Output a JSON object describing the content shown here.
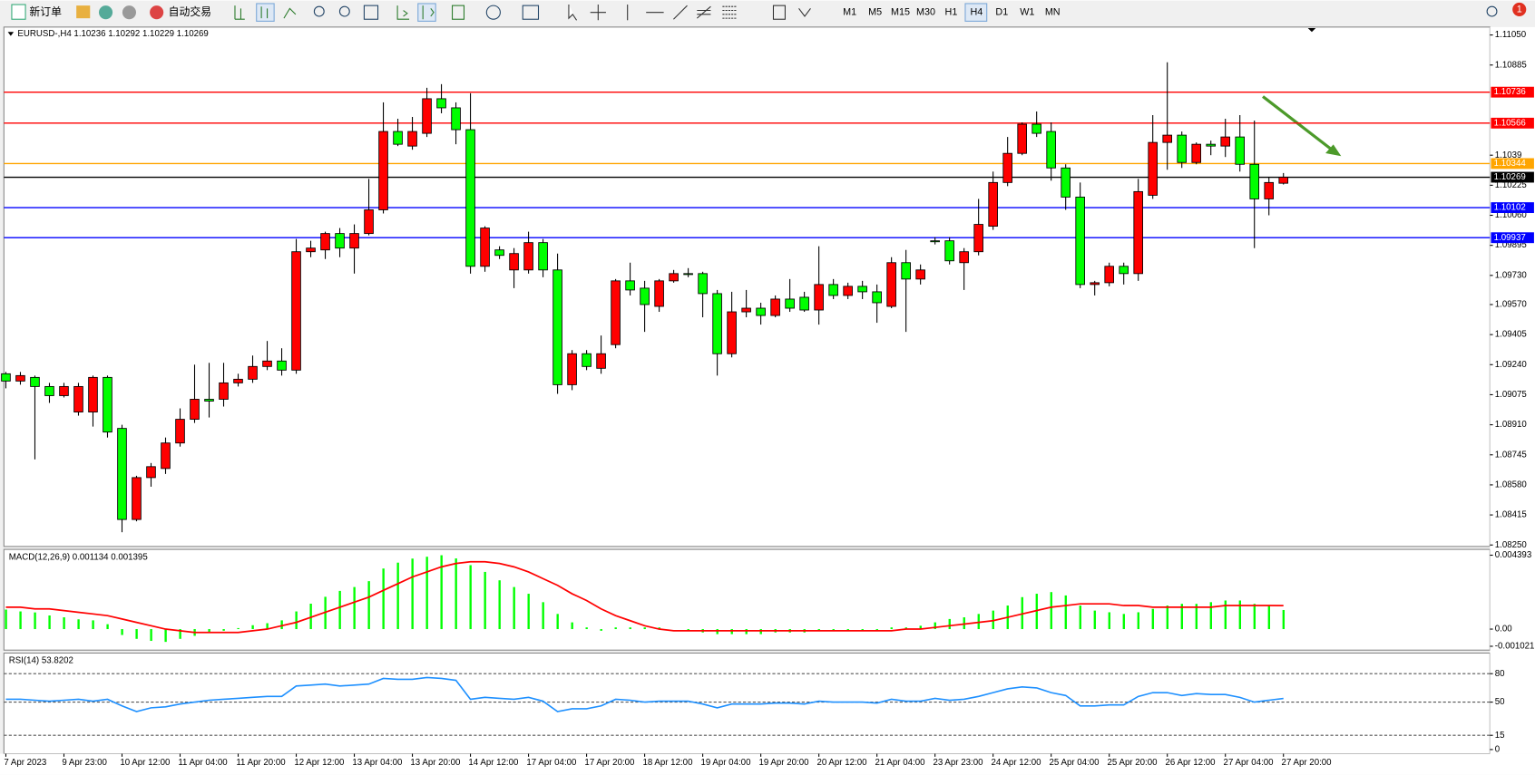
{
  "toolbar": {
    "new_order": "新订单",
    "auto_trading": "自动交易",
    "timeframes": [
      "M1",
      "M5",
      "M15",
      "M30",
      "H1",
      "H4",
      "D1",
      "W1",
      "MN"
    ],
    "notification": "1"
  },
  "chart_data": [
    {
      "type": "candlestick",
      "title": "EURUSD-,H4  1.10236 1.10292 1.10229 1.10269",
      "categories": [
        "7 Apr 2023",
        null,
        null,
        null,
        "9 Apr 23:00",
        null,
        null,
        null,
        "10 Apr 12:00",
        null,
        null,
        null,
        "11 Apr 04:00",
        null,
        null,
        null,
        "11 Apr 20:00",
        null,
        null,
        null,
        "12 Apr 12:00",
        null,
        null,
        null,
        "13 Apr 04:00",
        null,
        null,
        null,
        "13 Apr 20:00",
        null,
        null,
        null,
        "14 Apr 12:00",
        null,
        null,
        null,
        "17 Apr 04:00",
        null,
        null,
        null,
        "17 Apr 20:00",
        null,
        null,
        null,
        "18 Apr 12:00",
        null,
        null,
        null,
        "19 Apr 04:00",
        null,
        null,
        null,
        "19 Apr 20:00",
        null,
        null,
        null,
        "20 Apr 12:00",
        null,
        null,
        null,
        "21 Apr 04:00",
        null,
        null,
        null,
        "23 Apr 23:00",
        null,
        null,
        null,
        "24 Apr 12:00",
        null,
        null,
        null,
        "25 Apr 04:00",
        null,
        null,
        null,
        "25 Apr 20:00",
        null,
        null,
        null,
        "26 Apr 12:00",
        null,
        null,
        null,
        "27 Apr 04:00",
        null,
        null,
        null,
        "27 Apr 20:00"
      ],
      "open": [
        1.0919,
        1.0915,
        1.0917,
        1.0912,
        1.0907,
        1.0898,
        1.0898,
        1.0917,
        1.0889,
        1.0839,
        1.0862,
        1.0867,
        1.0881,
        1.0894,
        1.0905,
        1.0905,
        1.0914,
        1.0916,
        1.0923,
        1.0926,
        1.0921,
        1.0986,
        1.0987,
        1.0996,
        1.0988,
        1.0996,
        1.1009,
        1.1052,
        1.1044,
        1.1051,
        1.107,
        1.1065,
        1.1053,
        1.0978,
        1.0987,
        1.0976,
        1.0976,
        1.0991,
        1.0976,
        1.0913,
        1.093,
        1.0922,
        1.0935,
        1.097,
        1.0966,
        1.0956,
        1.097,
        1.0974,
        1.0974,
        1.0963,
        1.093,
        1.0953,
        1.0955,
        1.0951,
        1.096,
        1.0961,
        1.0954,
        1.0968,
        1.0962,
        1.0967,
        1.0964,
        1.0956,
        1.098,
        1.0971,
        1.0992,
        1.0992,
        1.098,
        1.0986,
        1.1,
        1.1024,
        1.104,
        1.1056,
        1.1052,
        1.1032,
        1.1016,
        1.0968,
        1.0969,
        1.0978,
        1.0974,
        1.1017,
        1.1046,
        1.105,
        1.1035,
        1.1045,
        1.1044,
        1.1049,
        1.1034,
        1.1015,
        1.10236
      ],
      "high": [
        1.092,
        1.092,
        1.0918,
        1.0914,
        1.0914,
        1.0914,
        1.0918,
        1.0918,
        1.0891,
        1.0863,
        1.087,
        1.0884,
        1.09,
        1.0924,
        1.0925,
        1.0925,
        1.0919,
        1.0929,
        1.0937,
        1.0933,
        1.0993,
        1.0992,
        1.0997,
        1.0999,
        1.1001,
        1.1026,
        1.1068,
        1.1059,
        1.106,
        1.1076,
        1.1078,
        1.1068,
        1.1073,
        1.1,
        1.0989,
        1.0988,
        1.0997,
        1.0993,
        1.0985,
        1.0932,
        1.0932,
        1.094,
        1.0971,
        1.098,
        1.097,
        1.0971,
        1.0976,
        1.0977,
        1.0975,
        1.0965,
        1.0964,
        1.0965,
        1.0958,
        1.0962,
        1.0971,
        1.0964,
        1.0989,
        1.0971,
        1.0969,
        1.097,
        1.0968,
        1.0983,
        1.0987,
        1.0979,
        1.0994,
        1.0994,
        1.0988,
        1.1015,
        1.103,
        1.1049,
        1.1057,
        1.1063,
        1.1057,
        1.1034,
        1.1024,
        1.097,
        1.098,
        1.098,
        1.1026,
        1.1061,
        1.109,
        1.1052,
        1.1046,
        1.1047,
        1.1059,
        1.1061,
        1.1058,
        1.1027,
        1.10292
      ],
      "low": [
        1.0911,
        1.0913,
        1.0872,
        1.0903,
        1.0906,
        1.0896,
        1.089,
        1.0884,
        1.0832,
        1.0838,
        1.0857,
        1.0864,
        1.0879,
        1.0892,
        1.0895,
        1.0901,
        1.0912,
        1.0914,
        1.0921,
        1.0918,
        1.0919,
        1.0983,
        1.0982,
        1.0983,
        1.0974,
        1.0995,
        1.1007,
        1.1044,
        1.1042,
        1.1049,
        1.1062,
        1.1045,
        1.0974,
        1.0975,
        1.0982,
        1.0966,
        1.0974,
        1.0972,
        1.0908,
        1.091,
        1.0921,
        1.0919,
        1.0933,
        1.0962,
        1.0942,
        1.0953,
        1.0969,
        1.0972,
        1.095,
        1.0918,
        1.0928,
        1.095,
        1.0946,
        1.095,
        1.0953,
        1.0953,
        1.0946,
        1.096,
        1.096,
        1.096,
        1.0947,
        1.0955,
        1.0942,
        1.0968,
        1.099,
        1.0979,
        1.0965,
        1.0984,
        1.0998,
        1.1022,
        1.1039,
        1.1049,
        1.1025,
        1.1009,
        1.0966,
        1.0962,
        1.0967,
        1.0968,
        1.097,
        1.1015,
        1.1031,
        1.1032,
        1.1034,
        1.1039,
        1.1038,
        1.103,
        1.0988,
        1.1006,
        1.10229
      ],
      "close": [
        1.0915,
        1.0918,
        1.0912,
        1.0907,
        1.0912,
        1.0912,
        1.0917,
        1.0887,
        1.0839,
        1.0862,
        1.0868,
        1.0881,
        1.0894,
        1.0905,
        1.0904,
        1.0914,
        1.0916,
        1.0923,
        1.0926,
        1.0921,
        1.0986,
        1.0988,
        1.0996,
        1.0988,
        1.0996,
        1.1009,
        1.1052,
        1.1045,
        1.1052,
        1.107,
        1.1065,
        1.1053,
        1.0978,
        1.0999,
        1.0984,
        1.0985,
        1.0991,
        1.0976,
        1.0913,
        1.093,
        1.0923,
        1.093,
        1.097,
        1.0965,
        1.0957,
        1.097,
        1.0974,
        1.0974,
        1.0963,
        1.093,
        1.0953,
        1.0955,
        1.0951,
        1.096,
        1.0955,
        1.0954,
        1.0968,
        1.0962,
        1.0967,
        1.0964,
        1.0958,
        1.098,
        1.0971,
        1.0976,
        1.0992,
        1.0981,
        1.0986,
        1.1001,
        1.1024,
        1.104,
        1.1056,
        1.1051,
        1.1032,
        1.1016,
        1.0968,
        1.0969,
        1.0978,
        1.0974,
        1.1019,
        1.1046,
        1.105,
        1.1035,
        1.1045,
        1.1044,
        1.1049,
        1.1034,
        1.1015,
        1.1024,
        1.10269
      ],
      "up_color": "#ff0000",
      "down_color": "#00ff00",
      "ylim": [
        1.08242,
        1.11088
      ],
      "yticks": [
        {
          "value": 1.1105,
          "label": "1.11050"
        },
        1.10885,
        1.1039,
        1.10225,
        {
          "value": 1.1006,
          "label": "1.10060"
        },
        1.09895,
        {
          "value": 1.0973,
          "label": "1.09730"
        },
        {
          "value": 1.0957,
          "label": "1.09570"
        },
        1.09405,
        {
          "value": 1.0924,
          "label": "1.09240"
        },
        1.09075,
        {
          "value": 1.0891,
          "label": "1.08910"
        },
        1.08745,
        {
          "value": 1.0858,
          "label": "1.08580"
        },
        1.08415,
        {
          "value": 1.0825,
          "label": "1.08250"
        }
      ],
      "levels": [
        {
          "value": 1.10736,
          "color": "#ff0000"
        },
        {
          "value": 1.10566,
          "color": "#ff0000"
        },
        {
          "value": 1.10344,
          "color": "#ffa500"
        },
        {
          "value": 1.10269,
          "color": "#000000"
        },
        {
          "value": 1.10102,
          "color": "#0000ff"
        },
        {
          "value": 1.09937,
          "color": "#0000ff"
        }
      ]
    },
    {
      "type": "macd",
      "title": "MACD(12,26,9) 0.001134 0.001395",
      "ylim": [
        -0.00125,
        0.00468
      ],
      "yticks": [
        0.004393,
        {
          "value": 0,
          "label": "0.00"
        },
        -0.001021
      ],
      "series": [
        {
          "type": "bar",
          "color": "#00ff00",
          "values": [
            0.00116,
            0.00105,
            0.00099,
            0.00081,
            0.0007,
            0.00058,
            0.00052,
            0.00029,
            -0.00035,
            -0.00058,
            -0.0007,
            -0.00076,
            -0.00058,
            -0.0004,
            -0.0002,
            -0.0001,
            6e-05,
            0.00023,
            0.00035,
            0.00052,
            0.00105,
            0.00151,
            0.00192,
            0.00227,
            0.0025,
            0.00285,
            0.0036,
            0.00395,
            0.00419,
            0.0043,
            0.00439,
            0.0042,
            0.0038,
            0.0034,
            0.0029,
            0.0025,
            0.0021,
            0.0016,
            0.0009,
            0.0004,
            0.0001,
            -0.0001,
            0.0001,
            0.0001,
            0.0001,
            0.0001,
            0.0,
            -0.0001,
            -0.0002,
            -0.0003,
            -0.0003,
            -0.0003,
            -0.0003,
            -0.0002,
            -0.0002,
            -0.0002,
            -0.0001,
            -0.0001,
            -0.0001,
            -0.0001,
            -0.0001,
            0.0001,
            0.0001,
            0.0002,
            0.0004,
            0.0006,
            0.0007,
            0.0009,
            0.0011,
            0.0014,
            0.0019,
            0.0021,
            0.0022,
            0.002,
            0.0014,
            0.0011,
            0.001,
            0.0009,
            0.001,
            0.0012,
            0.0014,
            0.0015,
            0.0015,
            0.0016,
            0.0017,
            0.0017,
            0.0015,
            0.0014,
            0.001134
          ]
        },
        {
          "type": "line",
          "color": "#ff0000",
          "values": [
            0.0013,
            0.0013,
            0.0012,
            0.0012,
            0.0011,
            0.001,
            0.0009,
            0.0008,
            0.0006,
            0.0004,
            0.0002,
            0.0,
            -0.0001,
            -0.0002,
            -0.0002,
            -0.0002,
            -0.0002,
            -0.0001,
            0.0,
            0.0002,
            0.0004,
            0.0007,
            0.001,
            0.0013,
            0.0016,
            0.0019,
            0.0023,
            0.0027,
            0.0031,
            0.0034,
            0.0037,
            0.0039,
            0.004,
            0.004,
            0.0039,
            0.0037,
            0.0034,
            0.003,
            0.0026,
            0.0021,
            0.0017,
            0.0012,
            0.0008,
            0.0005,
            0.0002,
            0.0,
            -0.0001,
            -0.0001,
            -0.0001,
            -0.0001,
            -0.0001,
            -0.0001,
            -0.0001,
            -0.0001,
            -0.0001,
            -0.0001,
            -0.0001,
            -0.0001,
            -0.0001,
            -0.0001,
            -0.0001,
            -0.0001,
            0.0,
            0.0,
            0.0001,
            0.0002,
            0.0003,
            0.0004,
            0.0005,
            0.0007,
            0.0009,
            0.0011,
            0.0013,
            0.0014,
            0.0015,
            0.0015,
            0.0015,
            0.0014,
            0.0014,
            0.0013,
            0.0013,
            0.0013,
            0.0013,
            0.0013,
            0.0014,
            0.0014,
            0.0014,
            0.0014,
            0.001395
          ]
        }
      ]
    },
    {
      "type": "line",
      "title": "RSI(14) 53.8202",
      "color": "#1e90ff",
      "ylim": [
        -4.5,
        100.7
      ],
      "yticks": [
        0,
        15,
        50,
        80
      ],
      "levels": [
        15,
        50,
        80
      ],
      "values": [
        53,
        53,
        52,
        51,
        52,
        53,
        51,
        53,
        46,
        40,
        44,
        45,
        48,
        50,
        52,
        53,
        54,
        55,
        56,
        56,
        67,
        68,
        69,
        67,
        68,
        69,
        75,
        74,
        74,
        76,
        75,
        73,
        53,
        55,
        54,
        53,
        55,
        51,
        40,
        43,
        43,
        46,
        53,
        52,
        50,
        51,
        51,
        51,
        48,
        44,
        48,
        48,
        48,
        49,
        49,
        48,
        51,
        50,
        50,
        50,
        49,
        53,
        51,
        51,
        54,
        52,
        53,
        56,
        60,
        64,
        66,
        65,
        60,
        57,
        46,
        46,
        47,
        47,
        56,
        60,
        60,
        57,
        59,
        58,
        58,
        55,
        50,
        52,
        53.8202
      ]
    }
  ]
}
